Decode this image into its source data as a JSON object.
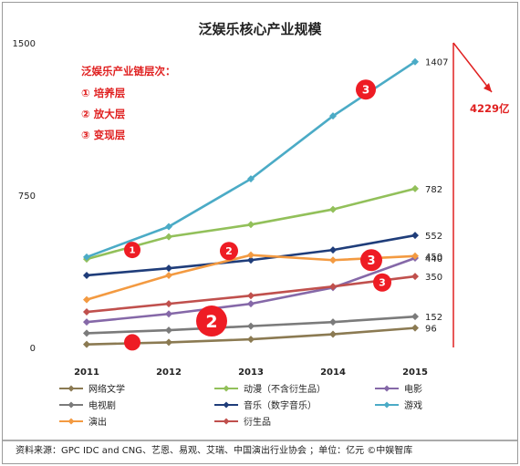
{
  "chart_data": {
    "type": "line",
    "title": "泛娱乐核心产业规模",
    "x": [
      "2011",
      "2012",
      "2013",
      "2014",
      "2015"
    ],
    "ylim": [
      0,
      1500
    ],
    "yticks": [
      "0",
      "750",
      "1500"
    ],
    "grid": false,
    "series": [
      {
        "name": "网络文学",
        "color": "#8b7a52",
        "values": [
          15,
          25,
          40,
          65,
          96
        ],
        "end_label": "96"
      },
      {
        "name": "动漫（不含衍生品）",
        "color": "#92c05a",
        "values": [
          435,
          545,
          605,
          680,
          782
        ],
        "end_label": "782"
      },
      {
        "name": "电影",
        "color": "#8568a8",
        "values": [
          125,
          165,
          215,
          295,
          440
        ],
        "end_label": "440"
      },
      {
        "name": "电视剧",
        "color": "#7b7b7b",
        "values": [
          70,
          85,
          105,
          125,
          152
        ],
        "end_label": "152"
      },
      {
        "name": "音乐（数字音乐）",
        "color": "#1f3d7a",
        "values": [
          355,
          390,
          430,
          480,
          552
        ],
        "end_label": "552"
      },
      {
        "name": "游戏",
        "color": "#4babc6",
        "values": [
          445,
          595,
          830,
          1140,
          1407
        ],
        "end_label": "1407"
      },
      {
        "name": "演出",
        "color": "#f39a41",
        "values": [
          235,
          355,
          455,
          430,
          450
        ],
        "end_label": "450"
      },
      {
        "name": "衍生品",
        "color": "#c0504d",
        "values": [
          175,
          215,
          255,
          300,
          350
        ],
        "end_label": "350"
      }
    ]
  },
  "annotations": {
    "layers_heading": "泛娱乐产业链层次：",
    "layers": [
      "① 培养层",
      "② 放大层",
      "③ 变现层"
    ],
    "total": "4229亿",
    "badges": [
      {
        "label": "1",
        "x": "2011",
        "y": 480,
        "r": 9
      },
      {
        "label": "2",
        "x": "2013",
        "y": 475,
        "r": 10
      },
      {
        "label": "3",
        "x": "2014",
        "y": 1270,
        "r": 11
      },
      {
        "label": "3",
        "x": "2014",
        "y": 430,
        "r": 12
      },
      {
        "label": "3",
        "x": "2014",
        "y": 320,
        "r": 10
      },
      {
        "label": "2",
        "x": "2012",
        "y": 130,
        "r": 17
      },
      {
        "label": "",
        "x": "2011",
        "y": 25,
        "r": 9
      }
    ],
    "badge_color": "#ee1c24"
  },
  "footer": {
    "source": "资料来源：GPC IDC and CNG、艺恩、易观、艾瑞、中国演出行业协会 ；单位：亿元    ©中娱智库"
  }
}
